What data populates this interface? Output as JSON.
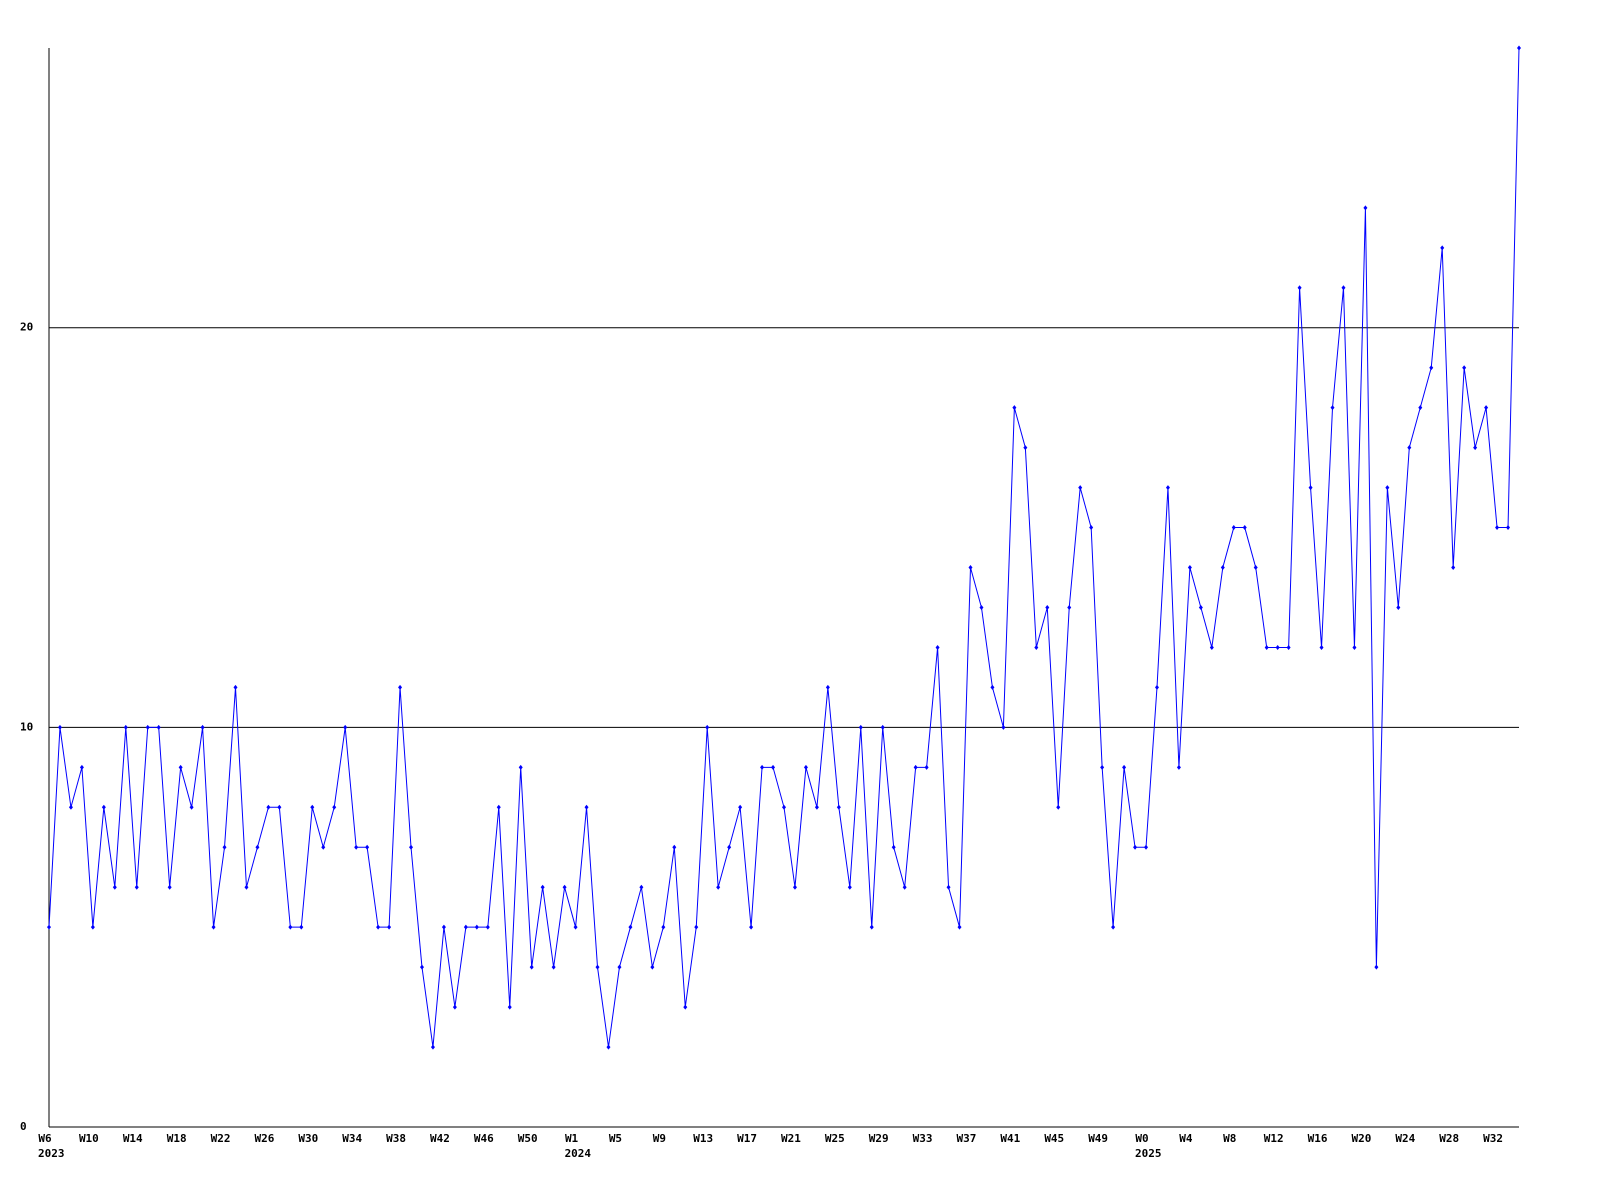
{
  "chart_data": {
    "type": "line",
    "color": "#0000ff",
    "categories": [
      "W6",
      null,
      null,
      null,
      "W10",
      null,
      null,
      null,
      "W14",
      null,
      null,
      null,
      "W18",
      null,
      null,
      null,
      "W22",
      null,
      null,
      null,
      "W26",
      null,
      null,
      null,
      "W30",
      null,
      null,
      null,
      "W34",
      null,
      null,
      null,
      "W38",
      null,
      null,
      null,
      "W42",
      null,
      null,
      null,
      "W46",
      null,
      null,
      null,
      "W50",
      null,
      null,
      null,
      "W1",
      null,
      null,
      null,
      "W5",
      null,
      null,
      null,
      "W9",
      null,
      null,
      null,
      "W13",
      null,
      null,
      null,
      "W17",
      null,
      null,
      null,
      "W21",
      null,
      null,
      null,
      "W25",
      null,
      null,
      null,
      "W29",
      null,
      null,
      null,
      "W33",
      null,
      null,
      null,
      "W37",
      null,
      null,
      null,
      "W41",
      null,
      null,
      null,
      "W45",
      null,
      null,
      null,
      "W49",
      null,
      null,
      null,
      "W0",
      null,
      null,
      null,
      "W4",
      null,
      null,
      null,
      "W8",
      null,
      null,
      null,
      "W12",
      null,
      null,
      null,
      "W16",
      null,
      null,
      null,
      "W20",
      null,
      null,
      null,
      "W24",
      null,
      null,
      null,
      "W28",
      null,
      null,
      null,
      "W32",
      null,
      null
    ],
    "years": [
      "2023",
      null,
      null,
      null,
      null,
      null,
      null,
      null,
      null,
      null,
      null,
      null,
      null,
      null,
      null,
      null,
      null,
      null,
      null,
      null,
      null,
      null,
      null,
      null,
      null,
      null,
      null,
      null,
      null,
      null,
      null,
      null,
      null,
      null,
      null,
      null,
      null,
      null,
      null,
      null,
      null,
      null,
      null,
      null,
      null,
      null,
      null,
      null,
      "2024",
      null,
      null,
      null,
      null,
      null,
      null,
      null,
      null,
      null,
      null,
      null,
      null,
      null,
      null,
      null,
      null,
      null,
      null,
      null,
      null,
      null,
      null,
      null,
      null,
      null,
      null,
      null,
      null,
      null,
      null,
      null,
      null,
      null,
      null,
      null,
      null,
      null,
      null,
      null,
      null,
      null,
      null,
      null,
      null,
      null,
      null,
      null,
      null,
      null,
      null,
      null,
      "2025",
      null,
      null,
      null,
      null,
      null,
      null,
      null,
      null,
      null,
      null,
      null,
      null,
      null,
      null,
      null,
      null,
      null,
      null,
      null,
      null,
      null,
      null,
      null,
      null,
      null,
      null,
      null,
      null,
      null,
      null,
      null,
      null,
      null,
      null
    ],
    "values": [
      5,
      10,
      8,
      9,
      5,
      8,
      6,
      10,
      6,
      10,
      10,
      6,
      9,
      8,
      10,
      5,
      7,
      11,
      6,
      7,
      8,
      8,
      5,
      5,
      8,
      7,
      8,
      10,
      7,
      7,
      5,
      5,
      11,
      7,
      4,
      2,
      5,
      3,
      5,
      5,
      5,
      8,
      3,
      9,
      4,
      6,
      4,
      6,
      5,
      8,
      4,
      2,
      4,
      5,
      6,
      4,
      5,
      7,
      3,
      5,
      10,
      6,
      7,
      8,
      5,
      9,
      9,
      8,
      6,
      9,
      8,
      11,
      8,
      6,
      10,
      5,
      10,
      7,
      6,
      9,
      9,
      12,
      6,
      5,
      14,
      13,
      11,
      10,
      18,
      17,
      12,
      13,
      8,
      13,
      16,
      15,
      9,
      5,
      9,
      7,
      7,
      11,
      16,
      9,
      14,
      13,
      12,
      14,
      15,
      15,
      14,
      12,
      12,
      12,
      21,
      16,
      12,
      18,
      21,
      12,
      23,
      4,
      16,
      13,
      17,
      18,
      19,
      22,
      14,
      19,
      17,
      18,
      15,
      15,
      27
    ],
    "ylim": [
      0,
      27
    ],
    "yticks": [
      0,
      10,
      20
    ],
    "grid": true
  }
}
